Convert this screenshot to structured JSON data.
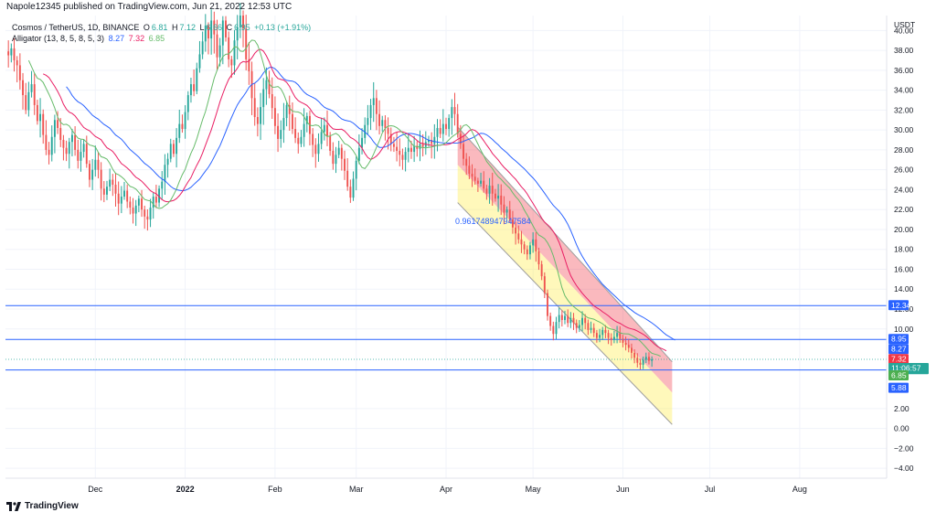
{
  "header": {
    "published": "Napole12345 published on TradingView.com, Jun 21, 2022 12:53 UTC"
  },
  "legend": {
    "symbol": "Cosmos / TetherUS, 1D, BINANCE",
    "o_label": "O",
    "o_value": "6.81",
    "h_label": "H",
    "h_value": "7.12",
    "l_label": "L",
    "l_value": "6.66",
    "c_label": "C",
    "c_value": "6.95",
    "change": "+0.13 (+1.91%)",
    "indicator": "Alligator (13, 8, 5, 8, 5, 3)",
    "jaw": "8.27",
    "teeth": "7.32",
    "lips": "6.85"
  },
  "footer": {
    "brand": "TradingView"
  },
  "annotation": {
    "ratio_text": "0.961748947947584"
  },
  "colors": {
    "up": "#26a69a",
    "down": "#ef5350",
    "jaw": "#2962ff",
    "teeth": "#e91e63",
    "lips": "#66bb6a",
    "hline": "#2962ff",
    "zone_red": "#f23645",
    "zone_yellow": "#ffeb3b"
  },
  "chart_data": {
    "type": "candlestick",
    "currency": "USDT",
    "ylim": [
      -5,
      41.5
    ],
    "y_ticks": [
      "40.00",
      "38.00",
      "36.00",
      "34.00",
      "32.00",
      "30.00",
      "28.00",
      "26.00",
      "24.00",
      "22.00",
      "20.00",
      "18.00",
      "16.00",
      "14.00",
      "12.00",
      "10.00",
      "2.00",
      "0.00",
      "−2.00",
      "−4.00"
    ],
    "x_ticks": [
      "Dec",
      "2022",
      "Feb",
      "Mar",
      "Apr",
      "May",
      "Jun",
      "Jul",
      "Aug"
    ],
    "horizontal_levels": [
      12.34,
      8.95,
      5.88
    ],
    "price_labels": [
      {
        "text": "12.34",
        "value": 12.34,
        "role": "level"
      },
      {
        "text": "8.95",
        "value": 8.95,
        "role": "level"
      },
      {
        "text": "8.27",
        "value": 8.27,
        "role": "jaw"
      },
      {
        "text": "7.32",
        "value": 7.32,
        "role": "teeth"
      },
      {
        "text": "6.95",
        "value": 6.95,
        "role": "last"
      },
      {
        "text": "11:06:57",
        "value": 6.95,
        "role": "countdown"
      },
      {
        "text": "6.85",
        "value": 6.85,
        "role": "lips"
      },
      {
        "text": "5.88",
        "value": 5.88,
        "role": "level"
      }
    ],
    "close_series": {
      "start": "Nov 1, 2021",
      "values": [
        37.5,
        38.2,
        37.0,
        36.5,
        35.0,
        33.5,
        32.0,
        33.8,
        34.6,
        32.5,
        30.9,
        31.6,
        29.5,
        28.0,
        27.5,
        29.3,
        31.0,
        30.2,
        29.0,
        28.2,
        27.6,
        28.8,
        29.5,
        28.0,
        26.9,
        27.8,
        28.6,
        26.6,
        25.0,
        26.0,
        27.0,
        26.0,
        24.1,
        23.5,
        24.3,
        25.0,
        24.5,
        23.6,
        22.6,
        23.3,
        23.9,
        22.8,
        22.2,
        21.6,
        22.4,
        23.1,
        22.0,
        21.3,
        21.0,
        22.2,
        23.3,
        22.7,
        24.1,
        24.8,
        26.5,
        27.1,
        28.6,
        27.6,
        29.2,
        30.6,
        30.1,
        31.8,
        33.5,
        34.6,
        33.9,
        36.2,
        37.6,
        38.9,
        40.5,
        39.2,
        41.0,
        39.6,
        37.3,
        38.5,
        41.0,
        39.3,
        37.1,
        36.5,
        39.0,
        40.3,
        41.5,
        40.2,
        37.1,
        35.9,
        33.2,
        31.3,
        30.6,
        32.3,
        34.1,
        35.0,
        33.6,
        32.2,
        30.4,
        29.1,
        30.0,
        31.2,
        32.5,
        31.6,
        30.1,
        29.2,
        28.6,
        29.3,
        30.6,
        31.4,
        29.6,
        28.5,
        27.6,
        28.6,
        29.8,
        30.5,
        29.4,
        27.9,
        26.6,
        27.5,
        28.2,
        27.1,
        25.9,
        24.3,
        23.2,
        25.1,
        26.9,
        28.2,
        29.2,
        30.5,
        31.2,
        32.5,
        33.2,
        31.6,
        30.4,
        31.0,
        30.2,
        29.6,
        28.6,
        28.3,
        27.9,
        27.5,
        27.0,
        27.8,
        28.2,
        27.8,
        28.4,
        28.1,
        28.6,
        28.3,
        28.8,
        29.0,
        28.6,
        29.3,
        30.2,
        29.6,
        30.6,
        30.1,
        31.2,
        32.3,
        31.6,
        29.6,
        28.6,
        27.1,
        26.4,
        25.6,
        25.3,
        24.9,
        24.6,
        24.9,
        24.1,
        23.6,
        24.4,
        23.6,
        23.1,
        23.4,
        22.5,
        21.7,
        22.0,
        21.0,
        20.2,
        19.6,
        19.0,
        18.5,
        18.0,
        17.5,
        18.4,
        19.0,
        17.8,
        16.5,
        15.3,
        13.6,
        11.3,
        10.3,
        9.5,
        10.7,
        11.4,
        10.9,
        11.3,
        10.6,
        11.1,
        10.6,
        10.1,
        10.4,
        11.1,
        10.6,
        9.9,
        10.1,
        9.6,
        9.1,
        9.4,
        9.9,
        9.6,
        9.1,
        8.9,
        9.2,
        9.6,
        9.0,
        8.6,
        8.4,
        8.1,
        7.6,
        7.1,
        6.6,
        6.4,
        6.9,
        7.2,
        6.8,
        6.95
      ]
    },
    "channel_zones": [
      {
        "color": "red",
        "start": "Apr 5, 2022",
        "end": "Jun 18, 2022",
        "top": [
          30.3,
          6.7
        ],
        "bottom": [
          26.5,
          3.6
        ]
      },
      {
        "color": "yellow",
        "start": "Apr 5, 2022",
        "end": "Jun 18, 2022",
        "top": [
          26.5,
          3.6
        ],
        "bottom": [
          22.7,
          0.4
        ]
      }
    ]
  }
}
